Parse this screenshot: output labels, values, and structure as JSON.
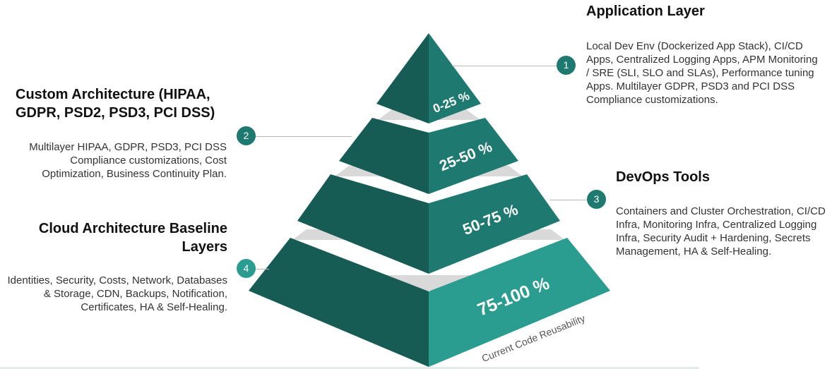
{
  "colors": {
    "dark": "#175c54",
    "mid": "#1e7a70",
    "light": "#2a9d90",
    "gap": "#d9d9d9",
    "badge_dark": "#1e7a70",
    "badge_light": "#2a9d90"
  },
  "layers": [
    {
      "number": "1",
      "range": "0-25 %",
      "title": "Application Layer",
      "description": "Local Dev Env (Dockerized App Stack), CI/CD Apps, Centralized Logging Apps, APM Monitoring / SRE (SLI, SLO and SLAs), Performance tuning Apps. Multilayer GDPR, PSD3 and PCI DSS Compliance customizations."
    },
    {
      "number": "2",
      "range": "25-50 %",
      "title": "Custom Architecture (HIPAA, GDPR, PSD2, PSD3, PCI DSS)",
      "description": "Multilayer HIPAA, GDPR, PSD3, PCI DSS Compliance customizations, Cost Optimization, Business Continuity Plan."
    },
    {
      "number": "3",
      "range": "50-75 %",
      "title": "DevOps Tools",
      "description": "Containers and Cluster Orchestration, CI/CD Infra, Monitoring Infra, Centralized Logging Infra, Security Audit + Hardening, Secrets Management, HA & Self-Healing."
    },
    {
      "number": "4",
      "range": "75-100 %",
      "title": "Cloud Architecture Baseline Layers",
      "description": "Identities, Security, Costs, Network, Databases & Storage, CDN, Backups, Notification, Certificates, HA & Self-Healing."
    }
  ],
  "axis_label": "Current Code Reusability"
}
